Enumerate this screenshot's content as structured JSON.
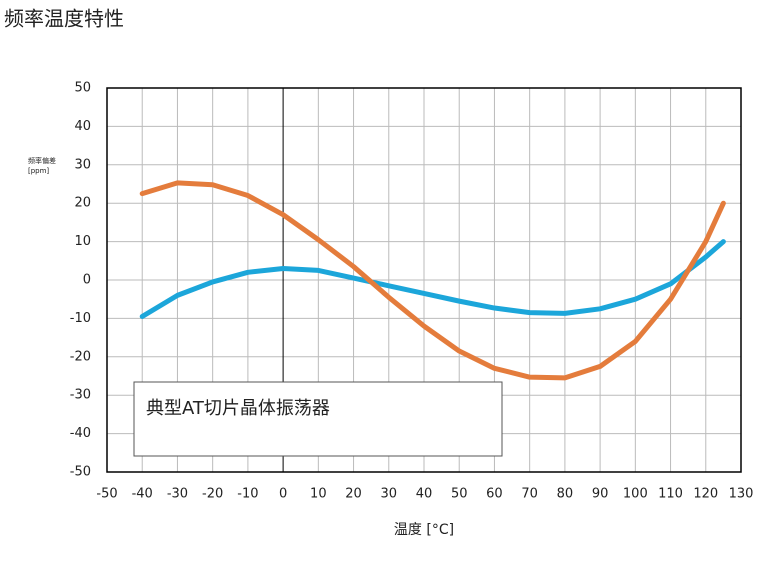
{
  "chart_data": {
    "type": "line",
    "title": "频率温度特性",
    "y_label": "频率偏差",
    "y_unit": "[ppm]",
    "x_label": "温度 [°C]",
    "annotation": "典型AT切片晶体振荡器",
    "x": [
      -40,
      -30,
      -20,
      -10,
      0,
      10,
      20,
      30,
      40,
      50,
      60,
      70,
      80,
      90,
      100,
      110,
      120,
      125
    ],
    "series": [
      {
        "color": "#1ca6da",
        "values": [
          -9.5,
          -4,
          -0.5,
          2,
          3,
          2.5,
          0.5,
          -1.5,
          -3.5,
          -5.5,
          -7.3,
          -8.5,
          -8.7,
          -7.5,
          -5,
          -1,
          6,
          10
        ]
      },
      {
        "color": "#e47c3c",
        "values": [
          22.5,
          25.3,
          24.8,
          22,
          17,
          10.5,
          3.5,
          -4.5,
          -12,
          -18.5,
          -23,
          -25.3,
          -25.5,
          -22.5,
          -16,
          -5,
          10,
          20
        ]
      }
    ],
    "xlim": [
      -50,
      130
    ],
    "xticks": [
      -50,
      -40,
      -30,
      -20,
      -10,
      0,
      10,
      20,
      30,
      40,
      50,
      60,
      70,
      80,
      90,
      100,
      110,
      120,
      130
    ],
    "ylim": [
      -50,
      50
    ],
    "yticks": [
      -50,
      -40,
      -30,
      -20,
      -10,
      0,
      10,
      20,
      30,
      40,
      50
    ],
    "grid": true
  }
}
